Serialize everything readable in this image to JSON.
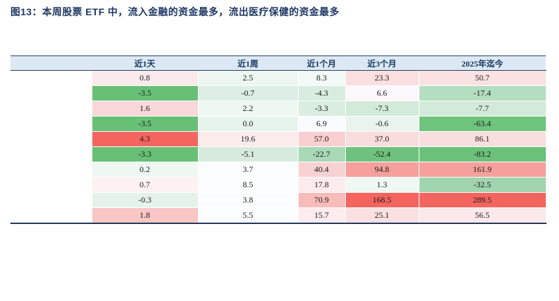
{
  "title": "图13：本周股票 ETF 中，流入金融的资金最多，流出医疗保健的资金最多",
  "colors": {
    "title_text": "#1F3864",
    "header_bg": "#DCE9F5",
    "header_text": "#17365D",
    "rule_line": "#2A3E5F",
    "strong_inflow_red": "#F4655F",
    "strong_outflow_green": "#68C077",
    "neutral_white": "#FBFCFE"
  },
  "chart_data": {
    "type": "table",
    "title": "本周股票ETF资金流向热力表",
    "columns": [
      "",
      "近1天",
      "近1周",
      "近1个月",
      "近3个月",
      "2025年迄今"
    ],
    "value_unit_decimals": 1,
    "rows": [
      {
        "label": "",
        "values": [
          0.8,
          2.5,
          8.3,
          23.3,
          50.7
        ],
        "cell_colors": [
          "#FBEAEB",
          "#EDF6F1",
          "#F3F9F6",
          "#FADFE0",
          "#FAE2E3"
        ]
      },
      {
        "label": "",
        "values": [
          -3.5,
          -0.7,
          -4.3,
          6.6,
          -17.4
        ],
        "cell_colors": [
          "#68C077",
          "#DDEFE4",
          "#D8ECDF",
          "#FCF7FA",
          "#B4DEC0"
        ]
      },
      {
        "label": "",
        "values": [
          1.6,
          2.2,
          -3.3,
          -7.3,
          -7.7
        ],
        "cell_colors": [
          "#F8D7D8",
          "#EEF7F2",
          "#D9EDE0",
          "#D2EAD9",
          "#D3EADA"
        ]
      },
      {
        "label": "",
        "values": [
          -3.5,
          0.0,
          6.9,
          -0.6,
          -63.4
        ],
        "cell_colors": [
          "#68C077",
          "#E7F4EC",
          "#FAFBFD",
          "#E8F4ED",
          "#6EC37D"
        ]
      },
      {
        "label": "",
        "values": [
          4.3,
          19.6,
          57.0,
          37.0,
          86.1
        ],
        "cell_colors": [
          "#F4655F",
          "#FBEBEB",
          "#F8CFD0",
          "#F9DCDD",
          "#F9DEDF"
        ]
      },
      {
        "label": "",
        "values": [
          -3.3,
          -5.1,
          -22.7,
          -52.4,
          -83.2
        ],
        "cell_colors": [
          "#68C077",
          "#D6EBDD",
          "#A9D8B6",
          "#6FC27D",
          "#6CC17A"
        ]
      },
      {
        "label": "",
        "values": [
          0.2,
          3.7,
          40.4,
          94.8,
          161.9
        ],
        "cell_colors": [
          "#EEF7F2",
          "#FBFCFE",
          "#F8D2D3",
          "#F5A09D",
          "#F5A09D"
        ]
      },
      {
        "label": "",
        "values": [
          0.7,
          8.5,
          17.8,
          1.3,
          -32.5
        ],
        "cell_colors": [
          "#FDF1F2",
          "#FBFCFE",
          "#FCEBEC",
          "#EFF8F3",
          "#A0D4AF"
        ]
      },
      {
        "label": "",
        "values": [
          -0.3,
          3.8,
          70.9,
          168.5,
          289.5
        ],
        "cell_colors": [
          "#E5F2EA",
          "#FBFCFE",
          "#F7BCBA",
          "#F4655F",
          "#F4655F"
        ]
      },
      {
        "label": "",
        "values": [
          1.8,
          5.5,
          15.7,
          25.1,
          56.5
        ],
        "cell_colors": [
          "#F8C6C5",
          "#FBFCFE",
          "#FCECED",
          "#FAE0E1",
          "#FBE8E9"
        ]
      }
    ],
    "layout_hints": {
      "legend": "none",
      "color_scale": "red = inflow (positive), green = outflow (negative), white = neutral",
      "first_column": "row labels blank/redacted in screenshot"
    }
  }
}
